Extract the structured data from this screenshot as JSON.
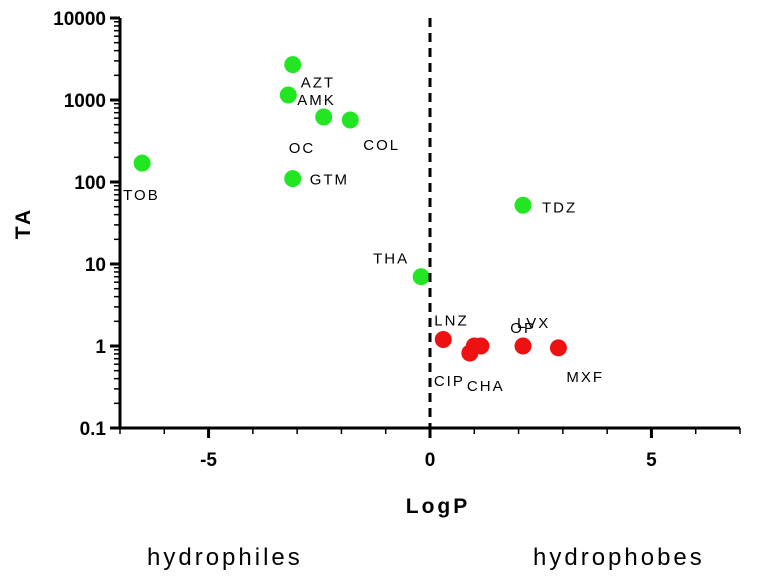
{
  "chart_data": {
    "type": "scatter",
    "xlabel": "LogP",
    "ylabel": "TA",
    "y_scale": "log",
    "xlim": [
      -7,
      7
    ],
    "ylim": [
      0.1,
      10000
    ],
    "x_ticks": [
      -5,
      0,
      5
    ],
    "x_tick_labels": [
      "-5",
      "0",
      "5"
    ],
    "y_ticks": [
      0.1,
      1,
      10,
      100,
      1000,
      10000
    ],
    "y_tick_labels": [
      "0.1",
      "1",
      "10",
      "100",
      "1000",
      "10000"
    ],
    "grid": false,
    "reference_line": {
      "x": 0,
      "style": "dashed"
    },
    "series": [
      {
        "color": "#22e622",
        "points": [
          {
            "label": "AZT",
            "x": -3.1,
            "y": 2700
          },
          {
            "label": "AMK",
            "x": -3.2,
            "y": 1150
          },
          {
            "label": "OC",
            "x": -2.4,
            "y": 620
          },
          {
            "label": "COL",
            "x": -1.8,
            "y": 570
          },
          {
            "label": "TOB",
            "x": -6.5,
            "y": 170
          },
          {
            "label": "GTM",
            "x": -3.1,
            "y": 110
          },
          {
            "label": "TDZ",
            "x": 2.1,
            "y": 52
          },
          {
            "label": "THA",
            "x": -0.2,
            "y": 7
          }
        ]
      },
      {
        "color": "#ee1111",
        "points": [
          {
            "label": "LNZ",
            "x": 0.3,
            "y": 1.2
          },
          {
            "label": "CIP",
            "x": 0.9,
            "y": 0.82
          },
          {
            "label": "OP",
            "x": 1.0,
            "y": 1.0
          },
          {
            "label": "CHA",
            "x": 1.15,
            "y": 1.0
          },
          {
            "label": "LVX",
            "x": 2.1,
            "y": 1.0
          },
          {
            "label": "MXF",
            "x": 2.9,
            "y": 0.95
          }
        ]
      }
    ],
    "annotations": [
      "hydrophiles",
      "hydrophobes"
    ]
  }
}
